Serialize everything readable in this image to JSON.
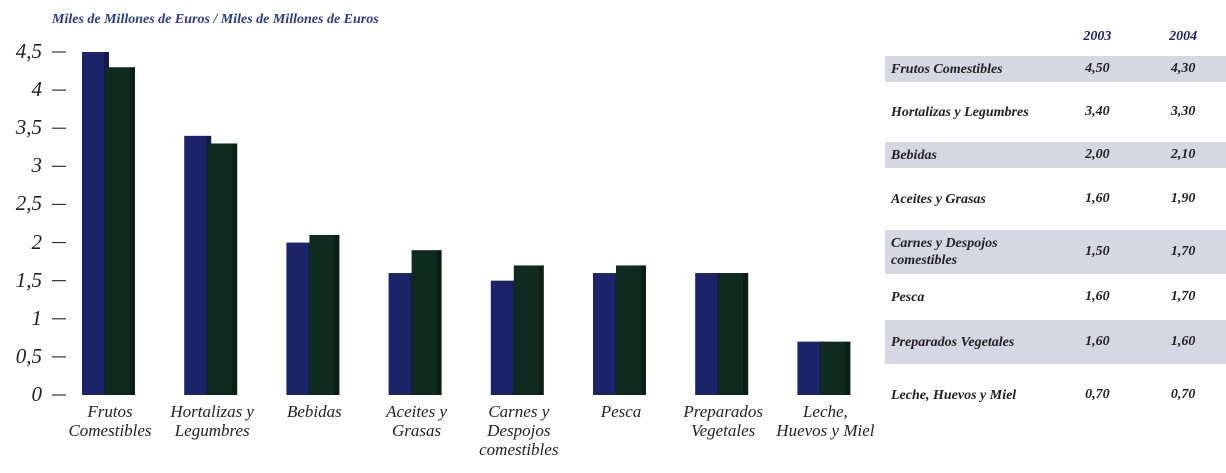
{
  "chart_data": {
    "type": "bar",
    "title": "Miles de Millones de Euros / Miles de Millones de Euros",
    "categories": [
      "Frutos Comestibles",
      "Hortalizas y Legumbres",
      "Bebidas",
      "Aceites y Grasas",
      "Carnes y Despojos comestibles",
      "Pesca",
      "Preparados Vegetales",
      "Leche, Huevos y Miel"
    ],
    "series": [
      {
        "name": "2003",
        "color": "#1b2468",
        "values": [
          4.5,
          3.4,
          2.0,
          1.6,
          1.5,
          1.6,
          1.6,
          0.7
        ],
        "value_labels": [
          "4,50",
          "3,40",
          "2,00",
          "1,60",
          "1,50",
          "1,60",
          "1,60",
          "0,70"
        ]
      },
      {
        "name": "2004",
        "color": "#0f2a1f",
        "values": [
          4.3,
          3.3,
          2.1,
          1.9,
          1.7,
          1.7,
          1.6,
          0.7
        ],
        "value_labels": [
          "4,30",
          "3,30",
          "2,10",
          "1,90",
          "1,70",
          "1,70",
          "1,60",
          "0,70"
        ]
      }
    ],
    "ylim": [
      0,
      4.5
    ],
    "yticks": [
      0,
      {
        "value": 0.5,
        "label": "0,5"
      },
      1,
      {
        "value": 1.5,
        "label": "1,5"
      },
      2,
      {
        "value": 2.5,
        "label": "2,5"
      },
      3,
      {
        "value": 3.5,
        "label": "3,5"
      },
      4,
      {
        "value": 4.5,
        "label": "4,5"
      }
    ]
  }
}
